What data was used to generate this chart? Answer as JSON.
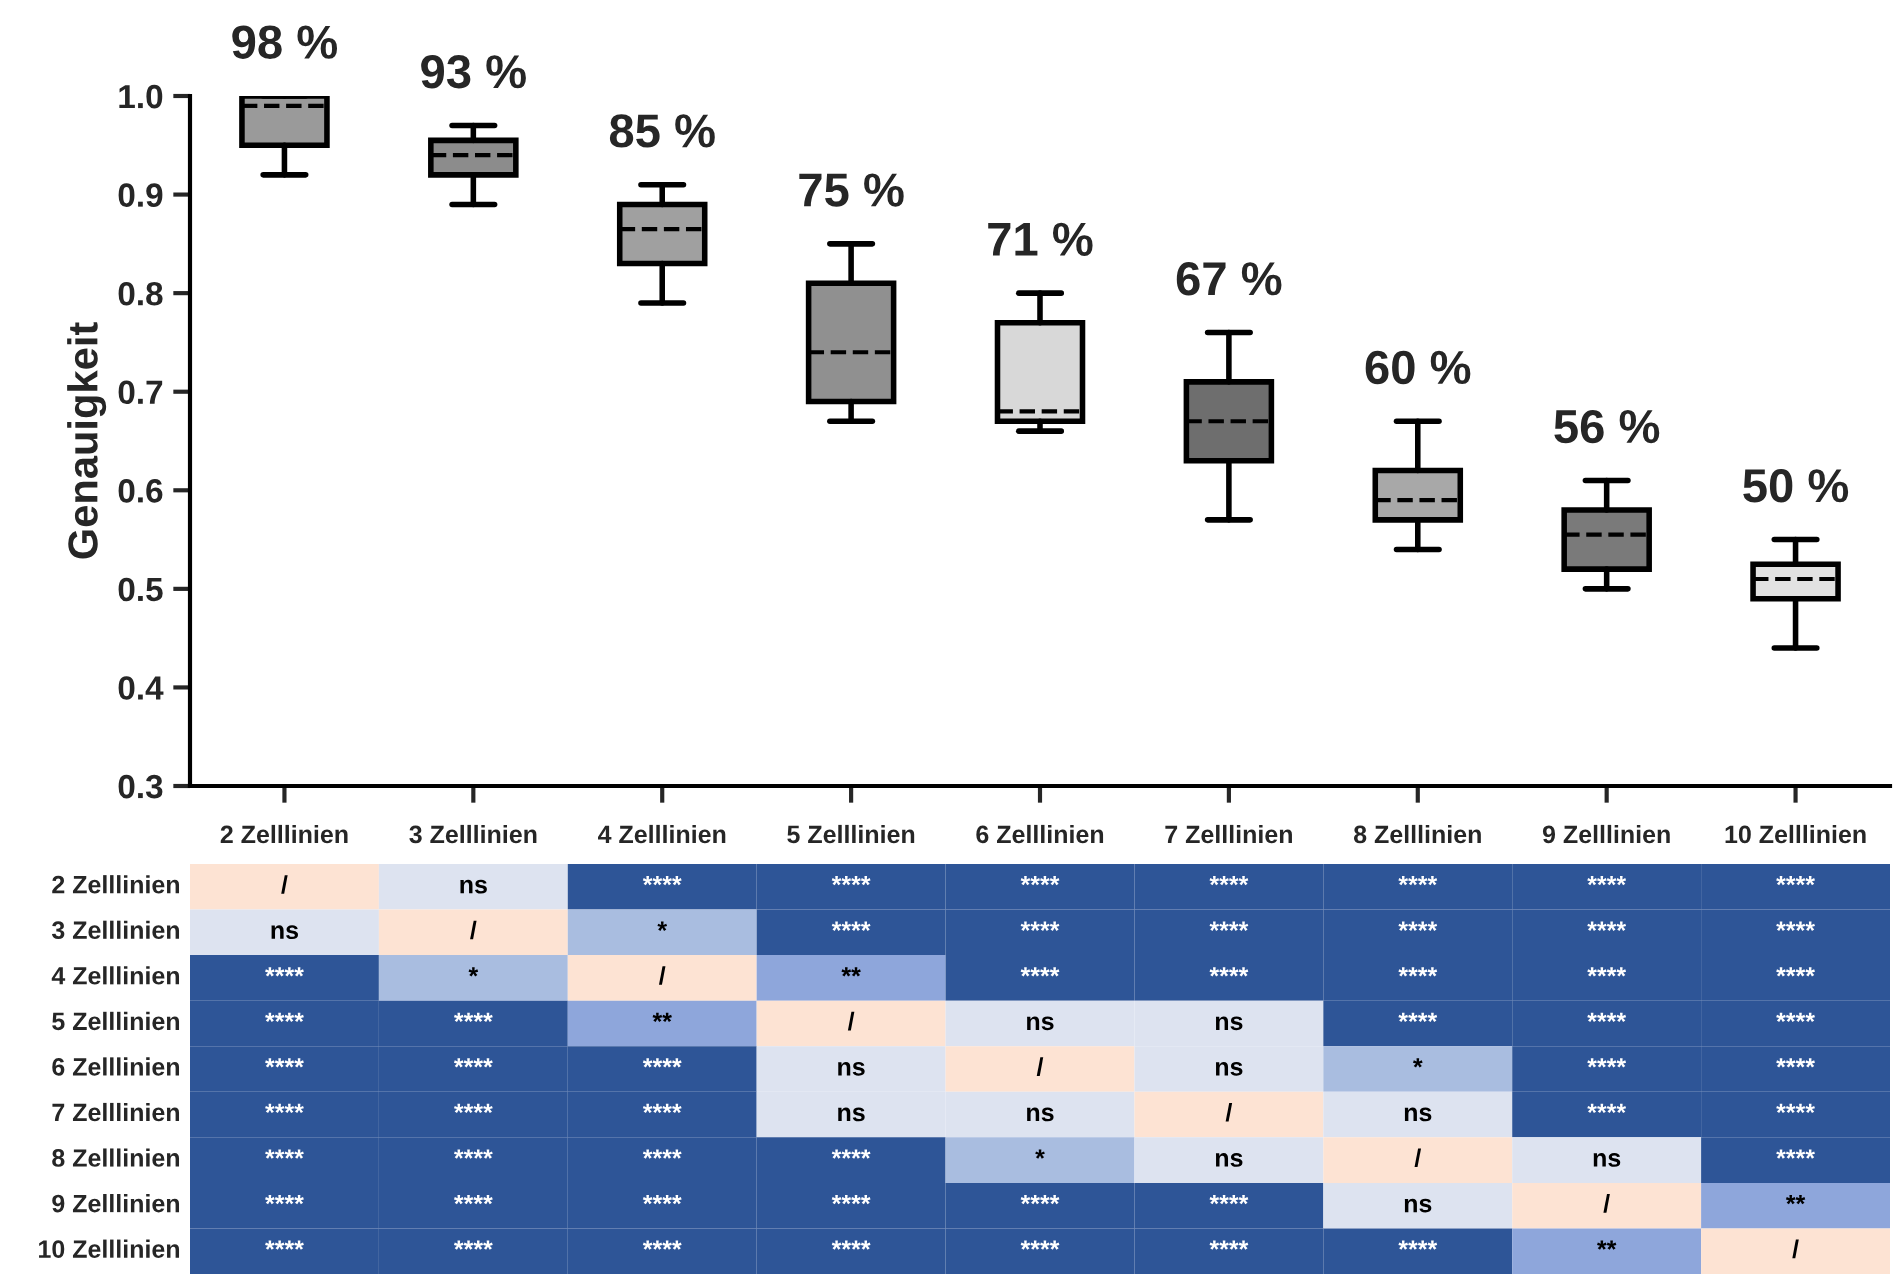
{
  "chart_data": [
    {
      "type": "box",
      "ylabel": "Genauigkeit",
      "categories": [
        "2 Zelllinien",
        "3 Zelllinien",
        "4 Zelllinien",
        "5 Zelllinien",
        "6 Zelllinien",
        "7 Zelllinien",
        "8 Zelllinien",
        "9 Zelllinien",
        "10 Zelllinien"
      ],
      "ylim": [
        0.3,
        1.0
      ],
      "yticks": [
        {
          "value": 0.3,
          "label": "0.3"
        },
        {
          "value": 0.4,
          "label": "0.4"
        },
        {
          "value": 0.5,
          "label": "0.5"
        },
        {
          "value": 0.6,
          "label": "0.6"
        },
        {
          "value": 0.7,
          "label": "0.7"
        },
        {
          "value": 0.8,
          "label": "0.8"
        },
        {
          "value": 0.9,
          "label": "0.9"
        },
        {
          "value": 1.0,
          "label": "1.0"
        }
      ],
      "grid": false,
      "colors": [
        "#9a9a9a",
        "#8c8c8c",
        "#a0a0a0",
        "#909090",
        "#d8d8d8",
        "#6e6e6e",
        "#a8a8a8",
        "#7a7a7a",
        "#e2e2e2"
      ],
      "boxes": [
        {
          "low": 0.92,
          "q1": 0.95,
          "median": 0.99,
          "q3": 1.0,
          "high": 1.0
        },
        {
          "low": 0.89,
          "q1": 0.92,
          "median": 0.94,
          "q3": 0.955,
          "high": 0.97
        },
        {
          "low": 0.79,
          "q1": 0.83,
          "median": 0.865,
          "q3": 0.89,
          "high": 0.91
        },
        {
          "low": 0.67,
          "q1": 0.69,
          "median": 0.74,
          "q3": 0.81,
          "high": 0.85
        },
        {
          "low": 0.66,
          "q1": 0.67,
          "median": 0.68,
          "q3": 0.77,
          "high": 0.8
        },
        {
          "low": 0.57,
          "q1": 0.63,
          "median": 0.67,
          "q3": 0.71,
          "high": 0.76
        },
        {
          "low": 0.54,
          "q1": 0.57,
          "median": 0.59,
          "q3": 0.62,
          "high": 0.67
        },
        {
          "low": 0.5,
          "q1": 0.52,
          "median": 0.555,
          "q3": 0.58,
          "high": 0.61
        },
        {
          "low": 0.44,
          "q1": 0.49,
          "median": 0.51,
          "q3": 0.525,
          "high": 0.55
        }
      ],
      "annotations": [
        {
          "text": "98 %",
          "x": "2 Zelllinien",
          "y": 1.0
        },
        {
          "text": "93 %",
          "x": "3 Zelllinien",
          "y": 0.97
        },
        {
          "text": "85 %",
          "x": "4 Zelllinien",
          "y": 0.91
        },
        {
          "text": "75 %",
          "x": "5 Zelllinien",
          "y": 0.85
        },
        {
          "text": "71 %",
          "x": "6 Zelllinien",
          "y": 0.8
        },
        {
          "text": "67 %",
          "x": "7 Zelllinien",
          "y": 0.76
        },
        {
          "text": "60 %",
          "x": "8 Zelllinien",
          "y": 0.67
        },
        {
          "text": "56 %",
          "x": "9 Zelllinien",
          "y": 0.61
        },
        {
          "text": "50 %",
          "x": "10 Zelllinien",
          "y": 0.55
        }
      ]
    },
    {
      "type": "other",
      "y_categories": [
        "2 Zelllinien",
        "3 Zelllinien",
        "4 Zelllinien",
        "5 Zelllinien",
        "6 Zelllinien",
        "7 Zelllinien",
        "8 Zelllinien",
        "9 Zelllinien",
        "10 Zelllinien"
      ],
      "cell_labels": [
        [
          "/",
          "ns",
          "****",
          "****",
          "****",
          "****",
          "****",
          "****",
          "****"
        ],
        [
          "ns",
          "/",
          "*",
          "****",
          "****",
          "****",
          "****",
          "****",
          "****"
        ],
        [
          "****",
          "*",
          "/",
          "**",
          "****",
          "****",
          "****",
          "****",
          "****"
        ],
        [
          "****",
          "****",
          "**",
          "/",
          "ns",
          "ns",
          "****",
          "****",
          "****"
        ],
        [
          "****",
          "****",
          "****",
          "ns",
          "/",
          "ns",
          "*",
          "****",
          "****"
        ],
        [
          "****",
          "****",
          "****",
          "ns",
          "ns",
          "/",
          "ns",
          "****",
          "****"
        ],
        [
          "****",
          "****",
          "****",
          "****",
          "*",
          "ns",
          "/",
          "ns",
          "****"
        ],
        [
          "****",
          "****",
          "****",
          "****",
          "****",
          "****",
          "ns",
          "/",
          "**"
        ],
        [
          "****",
          "****",
          "****",
          "****",
          "****",
          "****",
          "****",
          "**",
          "/"
        ]
      ],
      "colors": [
        [
          "#fde3d3",
          "#dde3f0",
          "#2e5597",
          "#2e5597",
          "#2e5597",
          "#2e5597",
          "#2e5597",
          "#2e5597",
          "#2e5597"
        ],
        [
          "#dde3f0",
          "#fde3d3",
          "#a9bde0",
          "#2e5597",
          "#2e5597",
          "#2e5597",
          "#2e5597",
          "#2e5597",
          "#2e5597"
        ],
        [
          "#2e5597",
          "#a9bde0",
          "#fde3d3",
          "#8ea6db",
          "#2e5597",
          "#2e5597",
          "#2e5597",
          "#2e5597",
          "#2e5597"
        ],
        [
          "#2e5597",
          "#2e5597",
          "#8ea6db",
          "#fde3d3",
          "#dde3f0",
          "#dde3f0",
          "#2e5597",
          "#2e5597",
          "#2e5597"
        ],
        [
          "#2e5597",
          "#2e5597",
          "#2e5597",
          "#dde3f0",
          "#fde3d3",
          "#dde3f0",
          "#a9bde0",
          "#2e5597",
          "#2e5597"
        ],
        [
          "#2e5597",
          "#2e5597",
          "#2e5597",
          "#dde3f0",
          "#dde3f0",
          "#fde3d3",
          "#dde3f0",
          "#2e5597",
          "#2e5597"
        ],
        [
          "#2e5597",
          "#2e5597",
          "#2e5597",
          "#2e5597",
          "#a9bde0",
          "#dde3f0",
          "#fde3d3",
          "#dde3f0",
          "#2e5597"
        ],
        [
          "#2e5597",
          "#2e5597",
          "#2e5597",
          "#2e5597",
          "#2e5597",
          "#2e5597",
          "#dde3f0",
          "#fde3d3",
          "#8ea6db"
        ],
        [
          "#2e5597",
          "#2e5597",
          "#2e5597",
          "#2e5597",
          "#2e5597",
          "#2e5597",
          "#2e5597",
          "#8ea6db",
          "#fde3d3"
        ]
      ]
    }
  ]
}
